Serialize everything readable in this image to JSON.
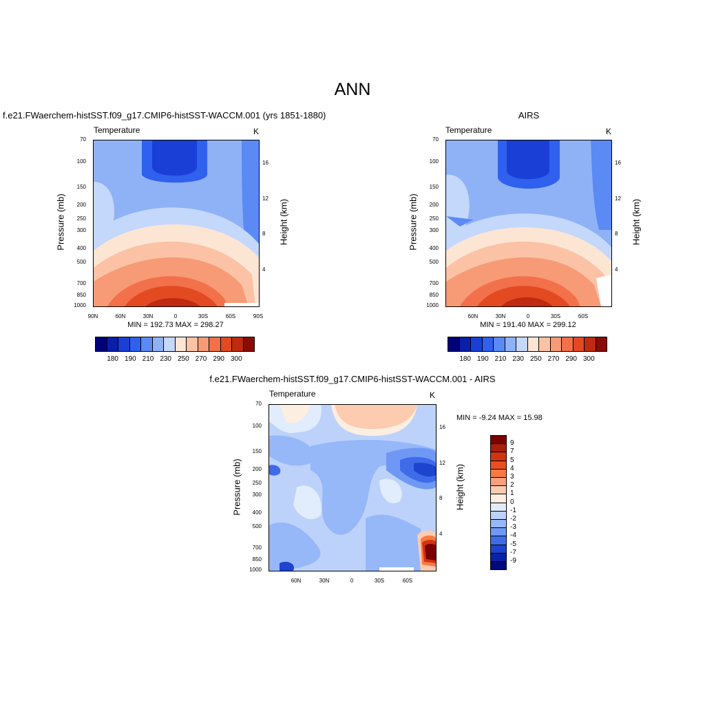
{
  "title": "ANN",
  "panels": [
    {
      "subtitle": "f.e21.FWaerchem-histSST.f09_g17.CMIP6-histSST-WACCM.001 (yrs 1851-1880)",
      "variable": "Temperature",
      "units": "K",
      "ylabel_left": "Pressure (mb)",
      "ylabel_right": "Height (km)",
      "minmax": "MIN = 192.73  MAX = 298.27"
    },
    {
      "subtitle": "AIRS",
      "variable": "Temperature",
      "units": "K",
      "ylabel_left": "Pressure (mb)",
      "ylabel_right": "Height (km)",
      "minmax": "MIN = 191.40  MAX = 299.12"
    },
    {
      "subtitle": "f.e21.FWaerchem-histSST.f09_g17.CMIP6-histSST-WACCM.001 - AIRS",
      "variable": "Temperature",
      "units": "K",
      "ylabel_left": "Pressure (mb)",
      "ylabel_right": "Height (km)",
      "minmax": "MIN =  -9.24  MAX =  15.98"
    }
  ],
  "chart_data": [
    {
      "type": "heatmap",
      "title": "f.e21.FWaerchem-histSST.f09_g17.CMIP6-histSST-WACCM.001 (yrs 1851-1880)",
      "xlabel": "",
      "ylabel": "Pressure (mb)",
      "ylabel_right": "Height (km)",
      "x_ticks": [
        "90N",
        "60N",
        "30N",
        "0",
        "30S",
        "60S",
        "90S"
      ],
      "y_ticks": [
        "70",
        "100",
        "150",
        "200",
        "250",
        "300",
        "400",
        "500",
        "700",
        "850",
        "1000"
      ],
      "y_right_ticks": [
        "16",
        "12",
        "8",
        "4"
      ],
      "min": 192.73,
      "max": 298.27,
      "units": "K",
      "colorbar_labels": [
        "180",
        "190",
        "210",
        "230",
        "250",
        "270",
        "290",
        "300"
      ]
    },
    {
      "type": "heatmap",
      "title": "AIRS",
      "ylabel": "Pressure (mb)",
      "ylabel_right": "Height (km)",
      "x_ticks": [
        "60N",
        "30N",
        "0",
        "30S",
        "60S"
      ],
      "y_ticks": [
        "70",
        "100",
        "150",
        "200",
        "250",
        "300",
        "400",
        "500",
        "700",
        "850",
        "1000"
      ],
      "y_right_ticks": [
        "16",
        "12",
        "8",
        "4"
      ],
      "min": 191.4,
      "max": 299.12,
      "units": "K",
      "colorbar_labels": [
        "180",
        "190",
        "210",
        "230",
        "250",
        "270",
        "290",
        "300"
      ]
    },
    {
      "type": "heatmap",
      "title": "f.e21.FWaerchem-histSST.f09_g17.CMIP6-histSST-WACCM.001 - AIRS",
      "ylabel": "Pressure (mb)",
      "ylabel_right": "Height (km)",
      "x_ticks": [
        "60N",
        "30N",
        "0",
        "30S",
        "60S"
      ],
      "y_ticks": [
        "70",
        "100",
        "150",
        "200",
        "250",
        "300",
        "400",
        "500",
        "700",
        "850",
        "1000"
      ],
      "y_right_ticks": [
        "16",
        "12",
        "8",
        "4"
      ],
      "min": -9.24,
      "max": 15.98,
      "units": "K",
      "colorbar_labels": [
        "9",
        "7",
        "5",
        "4",
        "3",
        "2",
        "1",
        "0",
        "-1",
        "-2",
        "-3",
        "-4",
        "-5",
        "-7",
        "-9"
      ]
    }
  ],
  "colors": {
    "abs_scale": [
      "#00007a",
      "#0a1fa8",
      "#1a3fd6",
      "#2f60ee",
      "#5b8af4",
      "#8fb2f7",
      "#c3d8fb",
      "#fde5d4",
      "#fbc2a5",
      "#f79a76",
      "#f2704a",
      "#e34a22",
      "#c02a10",
      "#8a0c06"
    ],
    "diff_scale": [
      "#7a0000",
      "#a81e0a",
      "#d2330f",
      "#ec4f1f",
      "#f77a45",
      "#fba07c",
      "#fdcbb0",
      "#fdeee2",
      "#e1ecfd",
      "#bcd2fb",
      "#96b7f8",
      "#6f98f5",
      "#3f6be9",
      "#1d44cf",
      "#0823a6",
      "#000a7a"
    ]
  }
}
